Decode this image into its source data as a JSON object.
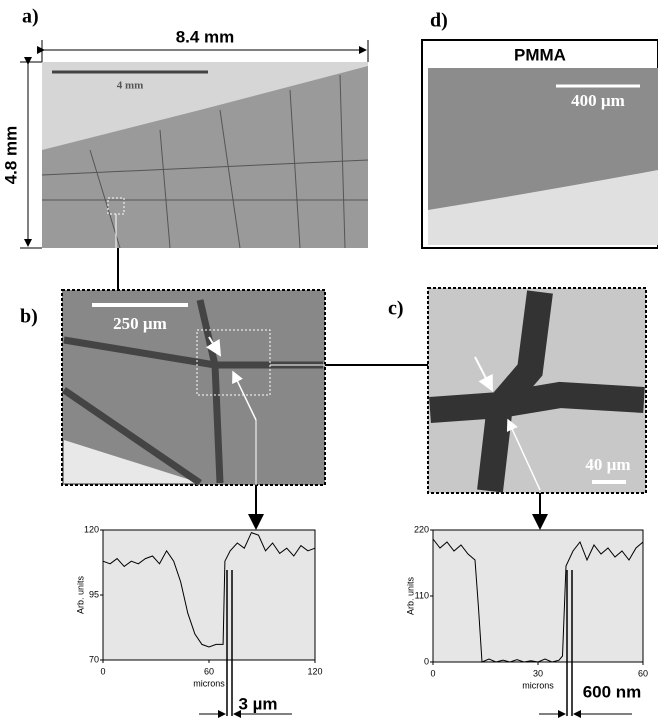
{
  "figure": {
    "panel_labels": [
      "a)",
      "b)",
      "c)",
      "d)"
    ],
    "width_label": "8.4 mm",
    "height_label": "4.8 mm",
    "scale_a": "4 mm",
    "scale_b": "250 µm",
    "scale_c": "40 µm",
    "scale_d": "400 µm",
    "title_d": "PMMA"
  },
  "chart_data": [
    {
      "type": "line",
      "xlabel": "microns",
      "ylabel": "Arb. units",
      "annotation": "3 µm",
      "x": [
        0,
        4,
        8,
        12,
        16,
        20,
        24,
        28,
        32,
        36,
        40,
        44,
        48,
        52,
        56,
        60,
        64,
        68,
        69,
        72,
        76,
        80,
        84,
        88,
        92,
        96,
        100,
        104,
        108,
        112,
        116,
        120
      ],
      "values": [
        108,
        107,
        109,
        106,
        108,
        107,
        109,
        110,
        107,
        112,
        108,
        100,
        88,
        80,
        76,
        75,
        76,
        76,
        108,
        112,
        115,
        113,
        119,
        118,
        112,
        115,
        111,
        113,
        110,
        114,
        112,
        113
      ],
      "color": "#000000",
      "xlim": [
        0,
        120
      ],
      "ylim": [
        70,
        120
      ],
      "xticks": [
        0,
        60,
        120
      ],
      "yticks": [
        70,
        95,
        120
      ]
    },
    {
      "type": "line",
      "xlabel": "microns",
      "ylabel": "Arb. units",
      "annotation": "600 nm",
      "x": [
        0,
        2,
        4,
        6,
        8,
        10,
        12,
        13,
        14,
        16,
        18,
        20,
        22,
        24,
        26,
        28,
        30,
        32,
        34,
        36,
        37,
        38,
        40,
        42,
        44,
        46,
        48,
        50,
        52,
        54,
        56,
        58,
        60
      ],
      "values": [
        205,
        190,
        200,
        185,
        195,
        180,
        170,
        90,
        0,
        5,
        0,
        3,
        0,
        4,
        0,
        2,
        0,
        5,
        0,
        3,
        10,
        160,
        185,
        200,
        170,
        195,
        180,
        190,
        175,
        185,
        170,
        190,
        200
      ],
      "color": "#000000",
      "xlim": [
        0,
        60
      ],
      "ylim": [
        0,
        220
      ],
      "xticks": [
        0,
        30,
        60
      ],
      "yticks": [
        0,
        110,
        220
      ]
    }
  ]
}
